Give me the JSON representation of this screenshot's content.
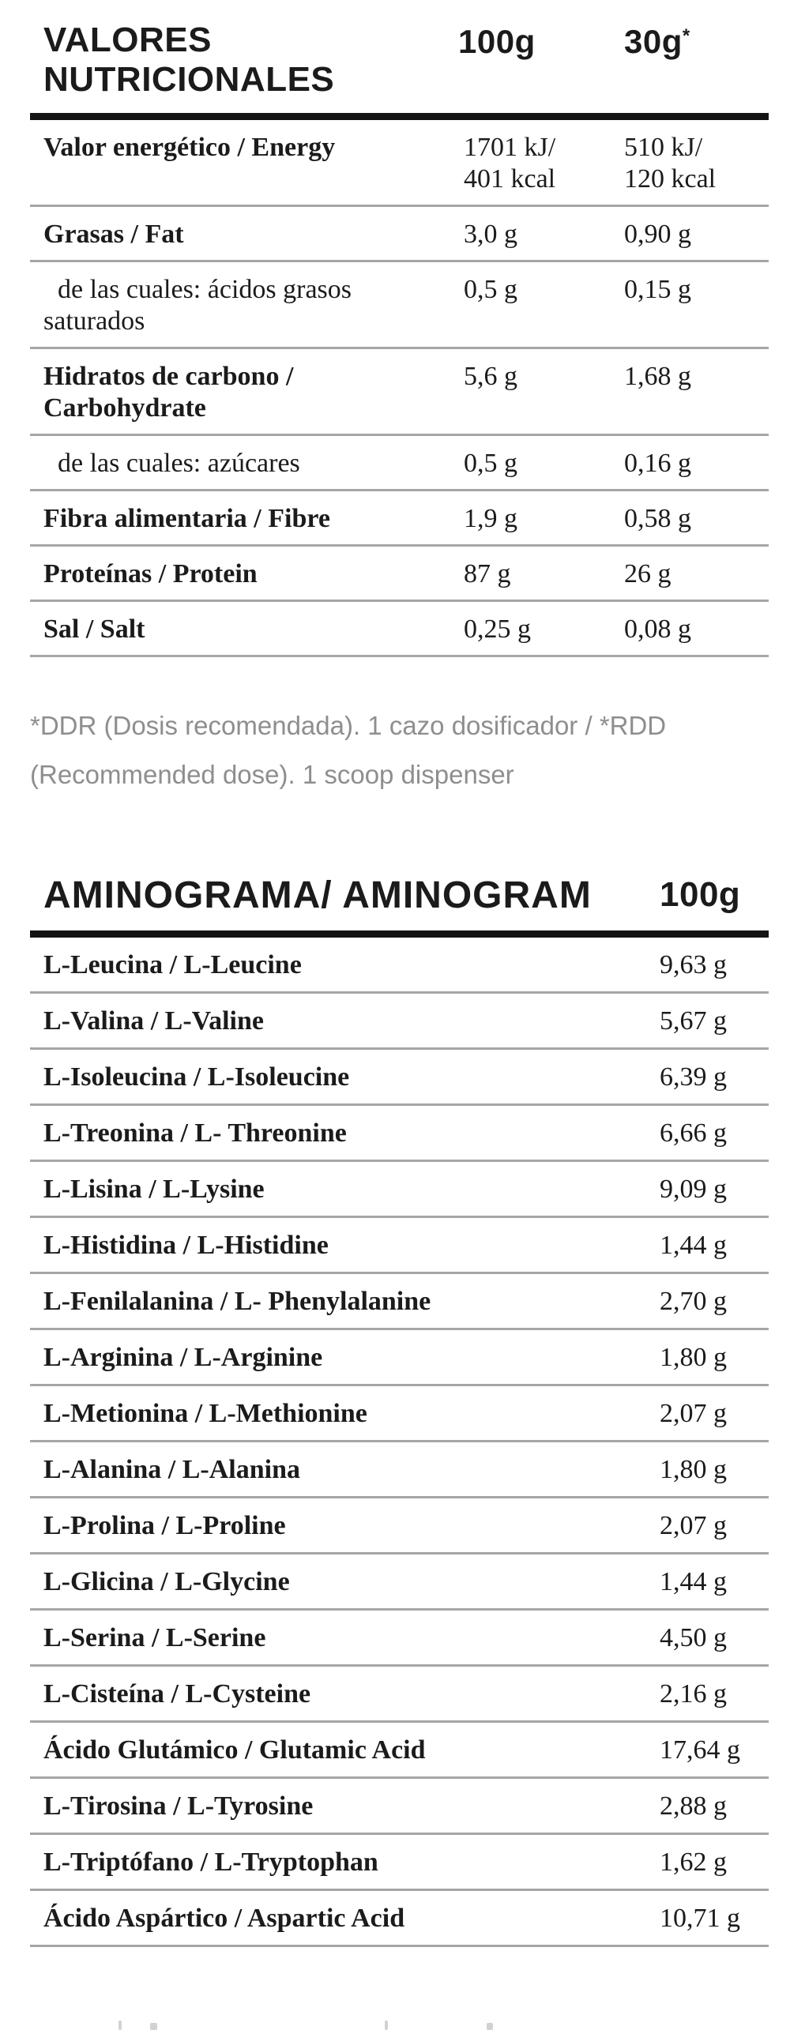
{
  "page": {
    "background": "#ffffff",
    "text_color": "#1b1b1b",
    "thin_rule_color": "#a6a6a6",
    "thick_rule_color": "#141414",
    "footnote_color": "#8e8e8e"
  },
  "nutrition_table": {
    "title_line1": "VALORES",
    "title_line2": "NUTRICIONALES",
    "col_header_100g": "100g",
    "col_header_30g": "30g",
    "col_header_30g_sup": "*",
    "rows": [
      {
        "label": "Valor energético / Energy",
        "bold": true,
        "indent": false,
        "v100": [
          "1701 kJ/",
          "401 kcal"
        ],
        "v30": [
          "510 kJ/",
          "120 kcal"
        ]
      },
      {
        "label": "Grasas / Fat",
        "bold": true,
        "indent": false,
        "v100": [
          "3,0 g"
        ],
        "v30": [
          "0,90 g"
        ]
      },
      {
        "label": "de las cuales: ácidos grasos saturados",
        "bold": false,
        "indent": true,
        "v100": [
          "0,5 g"
        ],
        "v30": [
          "0,15 g"
        ]
      },
      {
        "label": "Hidratos de carbono / Carbohydrate",
        "bold": true,
        "indent": false,
        "v100": [
          "5,6 g"
        ],
        "v30": [
          "1,68 g"
        ]
      },
      {
        "label": "de las cuales: azúcares",
        "bold": false,
        "indent": true,
        "v100": [
          "0,5 g"
        ],
        "v30": [
          "0,16 g"
        ]
      },
      {
        "label": "Fibra alimentaria / Fibre",
        "bold": true,
        "indent": false,
        "v100": [
          "1,9 g"
        ],
        "v30": [
          "0,58 g"
        ]
      },
      {
        "label": "Proteínas / Protein",
        "bold": true,
        "indent": false,
        "v100": [
          "87 g"
        ],
        "v30": [
          "26 g"
        ]
      },
      {
        "label": "Sal / Salt",
        "bold": true,
        "indent": false,
        "v100": [
          "0,25 g"
        ],
        "v30": [
          "0,08 g"
        ]
      }
    ]
  },
  "footnote": "*DDR (Dosis recomendada). 1 cazo dosificador / *RDD (Recommended dose). 1 scoop dispenser",
  "amino_table": {
    "title": "AMINOGRAMA/ AMINOGRAM",
    "col_header": "100g",
    "rows": [
      {
        "label": "L-Leucina / L-Leucine",
        "value": "9,63 g"
      },
      {
        "label": "L-Valina / L-Valine",
        "value": "5,67 g"
      },
      {
        "label": "L-Isoleucina / L-Isoleucine",
        "value": "6,39 g"
      },
      {
        "label": "L-Treonina / L- Threonine",
        "value": "6,66 g"
      },
      {
        "label": "L-Lisina / L-Lysine",
        "value": "9,09 g"
      },
      {
        "label": "L-Histidina / L-Histidine",
        "value": "1,44 g"
      },
      {
        "label": "L-Fenilalanina / L- Phenylalanine",
        "value": "2,70 g"
      },
      {
        "label": "L-Arginina / L-Arginine",
        "value": "1,80 g"
      },
      {
        "label": "L-Metionina / L-Methionine",
        "value": "2,07 g"
      },
      {
        "label": "L-Alanina / L-Alanina",
        "value": "1,80 g"
      },
      {
        "label": "L-Prolina / L-Proline",
        "value": "2,07 g"
      },
      {
        "label": "L-Glicina / L-Glycine",
        "value": "1,44 g"
      },
      {
        "label": "L-Serina / L-Serine",
        "value": "4,50 g"
      },
      {
        "label": "L-Cisteína / L-Cysteine",
        "value": "2,16 g"
      },
      {
        "label": "Ácido Glutámico / Glutamic Acid",
        "value": "17,64 g"
      },
      {
        "label": "L-Tirosina / L-Tyrosine",
        "value": "2,88 g"
      },
      {
        "label": "L-Triptófano / L-Tryptophan",
        "value": "1,62 g"
      },
      {
        "label": "Ácido Aspártico / Aspartic Acid",
        "value": "10,71 g"
      }
    ]
  }
}
